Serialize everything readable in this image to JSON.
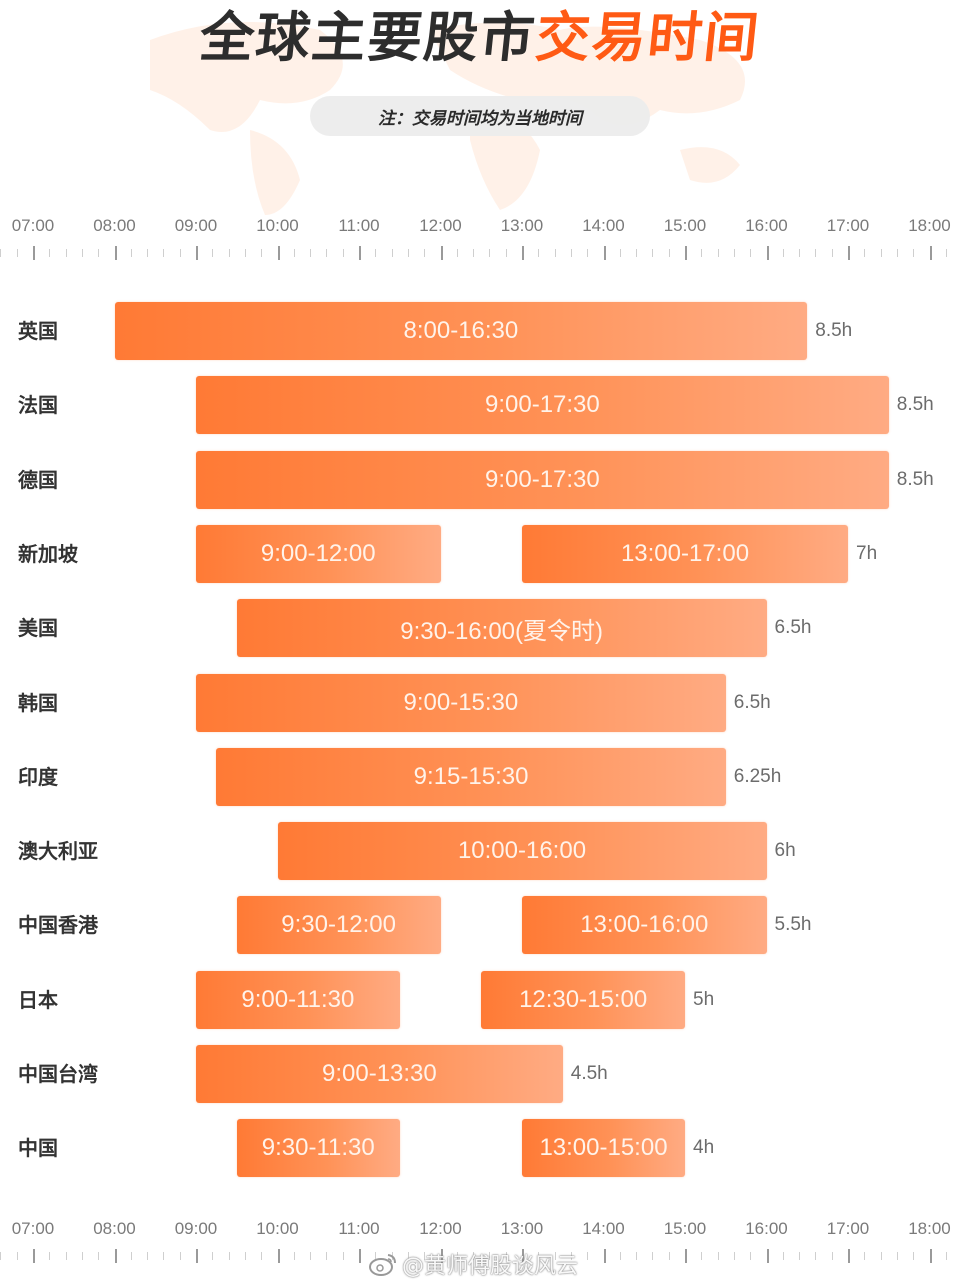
{
  "header": {
    "title_dark": "全球主要股市",
    "title_accent": "交易时间",
    "note": "注：交易时间均为当地时间"
  },
  "colors": {
    "title_dark": "#2d2d2d",
    "title_accent": "#ff5a14",
    "bar_start": "#ff7a35",
    "bar_end": "#ffab83",
    "note_bg": "#ececec",
    "axis_text": "#7a7a7a"
  },
  "axis": {
    "labels": [
      "07:00",
      "08:00",
      "09:00",
      "10:00",
      "11:00",
      "12:00",
      "13:00",
      "14:00",
      "15:00",
      "16:00",
      "17:00",
      "18:00"
    ]
  },
  "rows": [
    {
      "name": "英国",
      "segments": [
        {
          "label": "8:00-16:30"
        }
      ],
      "duration": "8.5h"
    },
    {
      "name": "法国",
      "segments": [
        {
          "label": "9:00-17:30"
        }
      ],
      "duration": "8.5h"
    },
    {
      "name": "德国",
      "segments": [
        {
          "label": "9:00-17:30"
        }
      ],
      "duration": "8.5h"
    },
    {
      "name": "新加坡",
      "segments": [
        {
          "label": "9:00-12:00"
        },
        {
          "label": "13:00-17:00"
        }
      ],
      "duration": "7h"
    },
    {
      "name": "美国",
      "segments": [
        {
          "label": "9:30-16:00(夏令时)"
        }
      ],
      "duration": "6.5h"
    },
    {
      "name": "韩国",
      "segments": [
        {
          "label": "9:00-15:30"
        }
      ],
      "duration": "6.5h"
    },
    {
      "name": "印度",
      "segments": [
        {
          "label": "9:15-15:30"
        }
      ],
      "duration": "6.25h"
    },
    {
      "name": "澳大利亚",
      "segments": [
        {
          "label": "10:00-16:00"
        }
      ],
      "duration": "6h"
    },
    {
      "name": "中国香港",
      "segments": [
        {
          "label": "9:30-12:00"
        },
        {
          "label": "13:00-16:00"
        }
      ],
      "duration": "5.5h"
    },
    {
      "name": "日本",
      "segments": [
        {
          "label": "9:00-11:30"
        },
        {
          "label": "12:30-15:00"
        }
      ],
      "duration": "5h"
    },
    {
      "name": "中国台湾",
      "segments": [
        {
          "label": "9:00-13:30"
        }
      ],
      "duration": "4.5h"
    },
    {
      "name": "中国",
      "segments": [
        {
          "label": "9:30-11:30"
        },
        {
          "label": "13:00-15:00"
        }
      ],
      "duration": "4h"
    }
  ],
  "watermark": "@黄师傅股谈风云",
  "chart_data": {
    "type": "bar",
    "subtype": "horizontal-range (gantt)",
    "title": "全球主要股市交易时间",
    "subtitle": "注：交易时间均为当地时间",
    "xlabel": "",
    "ylabel": "",
    "xlim": [
      "07:00",
      "18:00"
    ],
    "x_ticks": [
      "07:00",
      "08:00",
      "09:00",
      "10:00",
      "11:00",
      "12:00",
      "13:00",
      "14:00",
      "15:00",
      "16:00",
      "17:00",
      "18:00"
    ],
    "grid": false,
    "legend": null,
    "categories": [
      "英国",
      "法国",
      "德国",
      "新加坡",
      "美国",
      "韩国",
      "印度",
      "澳大利亚",
      "中国香港",
      "日本",
      "中国台湾",
      "中国"
    ],
    "series": [
      {
        "market": "英国",
        "sessions": [
          [
            "8:00",
            "16:30"
          ]
        ],
        "total_hours": 8.5
      },
      {
        "market": "法国",
        "sessions": [
          [
            "9:00",
            "17:30"
          ]
        ],
        "total_hours": 8.5
      },
      {
        "market": "德国",
        "sessions": [
          [
            "9:00",
            "17:30"
          ]
        ],
        "total_hours": 8.5
      },
      {
        "market": "新加坡",
        "sessions": [
          [
            "9:00",
            "12:00"
          ],
          [
            "13:00",
            "17:00"
          ]
        ],
        "total_hours": 7
      },
      {
        "market": "美国",
        "sessions": [
          [
            "9:30",
            "16:00"
          ]
        ],
        "total_hours": 6.5,
        "note": "夏令时"
      },
      {
        "market": "韩国",
        "sessions": [
          [
            "9:00",
            "15:30"
          ]
        ],
        "total_hours": 6.5
      },
      {
        "market": "印度",
        "sessions": [
          [
            "9:15",
            "15:30"
          ]
        ],
        "total_hours": 6.25
      },
      {
        "market": "澳大利亚",
        "sessions": [
          [
            "10:00",
            "16:00"
          ]
        ],
        "total_hours": 6
      },
      {
        "market": "中国香港",
        "sessions": [
          [
            "9:30",
            "12:00"
          ],
          [
            "13:00",
            "16:00"
          ]
        ],
        "total_hours": 5.5
      },
      {
        "market": "日本",
        "sessions": [
          [
            "9:00",
            "11:30"
          ],
          [
            "12:30",
            "15:00"
          ]
        ],
        "total_hours": 5
      },
      {
        "market": "中国台湾",
        "sessions": [
          [
            "9:00",
            "13:30"
          ]
        ],
        "total_hours": 4.5
      },
      {
        "market": "中国",
        "sessions": [
          [
            "9:30",
            "11:30"
          ],
          [
            "13:00",
            "15:00"
          ]
        ],
        "total_hours": 4
      }
    ]
  }
}
